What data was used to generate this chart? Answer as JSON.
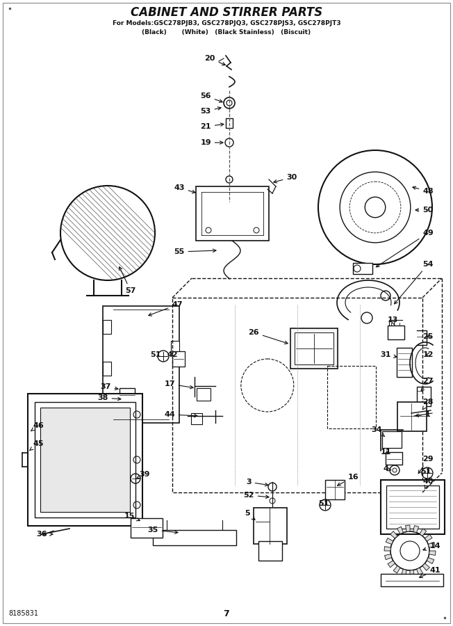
{
  "title": "CABINET AND STIRRER PARTS",
  "subtitle1": "For Models:GSC278PJB3, GSC278PJQ3, GSC278PJS3, GSC278PJT3",
  "subtitle2": "(Black)       (White)   (Black Stainless)   (Biscuit)",
  "part_number": "8185831",
  "page_number": "7",
  "bg_color": "#ffffff",
  "line_color": "#111111",
  "text_color": "#111111"
}
